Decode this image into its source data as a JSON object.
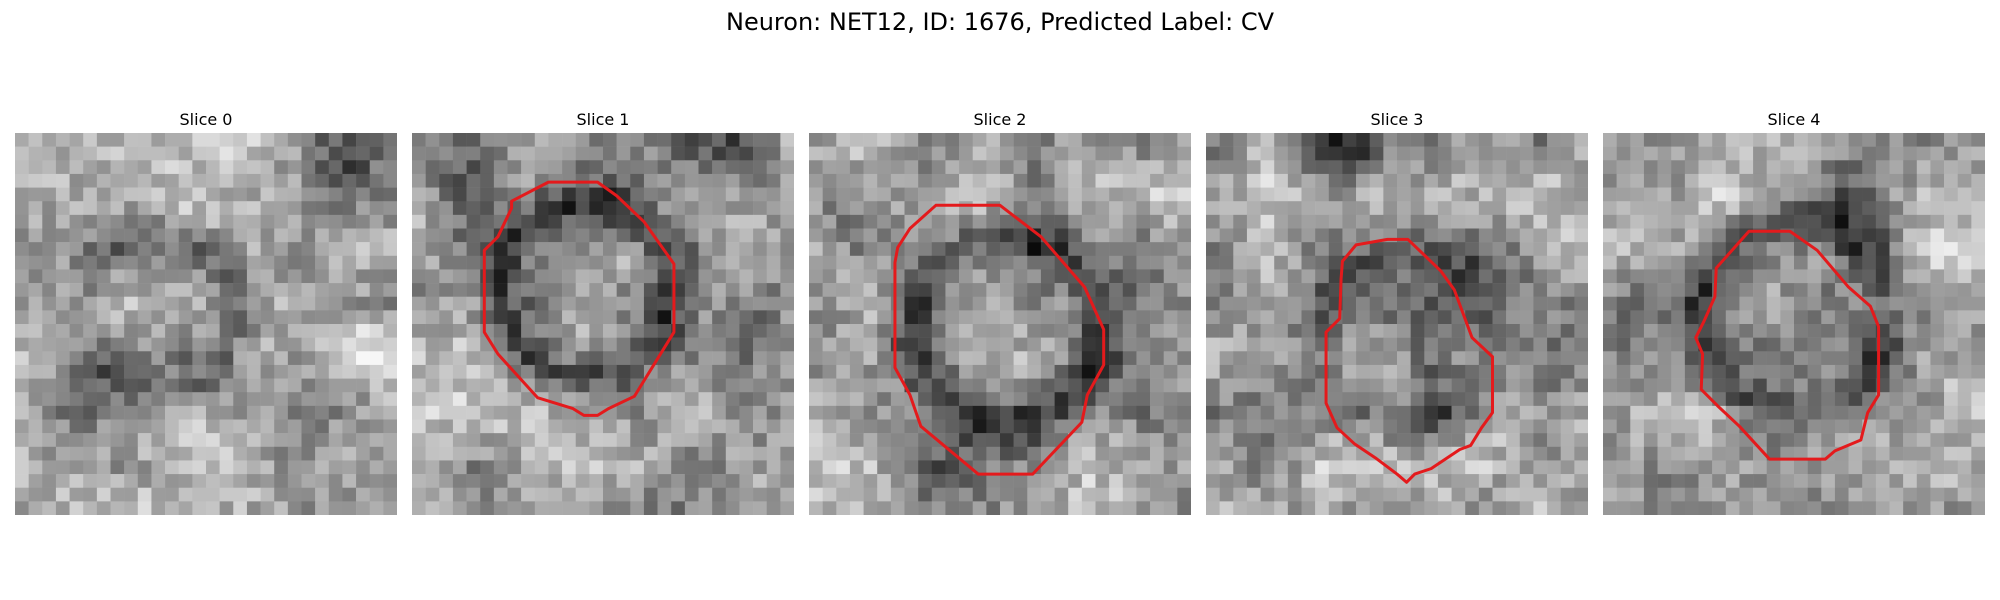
{
  "figure": {
    "title": "Neuron: NET12, ID: 1676, Predicted Label: CV"
  },
  "slices": [
    {
      "title": "Slice 0",
      "has_contour": false
    },
    {
      "title": "Slice 1",
      "has_contour": true
    },
    {
      "title": "Slice 2",
      "has_contour": true
    },
    {
      "title": "Slice 3",
      "has_contour": true
    },
    {
      "title": "Slice 4",
      "has_contour": true
    }
  ],
  "colors": {
    "contour": "#e41a1c",
    "background": "#ffffff"
  },
  "colormap": "grayscale"
}
